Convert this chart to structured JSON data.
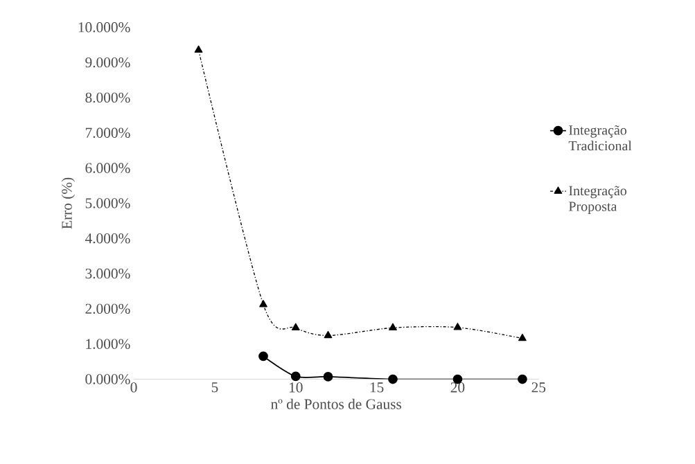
{
  "chart_data": {
    "type": "line",
    "xlabel": "nº de Pontos de Gauss",
    "ylabel": "Erro (%)",
    "x": [
      4,
      8,
      10,
      12,
      16,
      20,
      24
    ],
    "series": [
      {
        "name": "Integração Tradicional",
        "color": "#000000",
        "marker": "circle",
        "line_style": "solid",
        "values": [
          null,
          0.65,
          0.08,
          0.07,
          0.0,
          0.0,
          0.0
        ]
      },
      {
        "name": "Integração Proposta",
        "color": "#000000",
        "marker": "triangle",
        "line_style": "dashed",
        "values": [
          9.35,
          2.12,
          1.46,
          1.24,
          1.46,
          1.47,
          1.16
        ]
      }
    ],
    "xlim": [
      0,
      25
    ],
    "xticks": [
      0,
      5,
      10,
      15,
      20,
      25
    ],
    "ylim": [
      0,
      10
    ],
    "yticks": [
      {
        "value": 0,
        "label": "0.000%"
      },
      {
        "value": 1,
        "label": "1.000%"
      },
      {
        "value": 2,
        "label": "2.000%"
      },
      {
        "value": 3,
        "label": "3.000%"
      },
      {
        "value": 4,
        "label": "4.000%"
      },
      {
        "value": 5,
        "label": "5.000%"
      },
      {
        "value": 6,
        "label": "6.000%"
      },
      {
        "value": 7,
        "label": "7.000%"
      },
      {
        "value": 8,
        "label": "8.000%"
      },
      {
        "value": 9,
        "label": "9.000%"
      },
      {
        "value": 10,
        "label": "10.000%"
      }
    ],
    "grid": false,
    "legend": "right"
  }
}
